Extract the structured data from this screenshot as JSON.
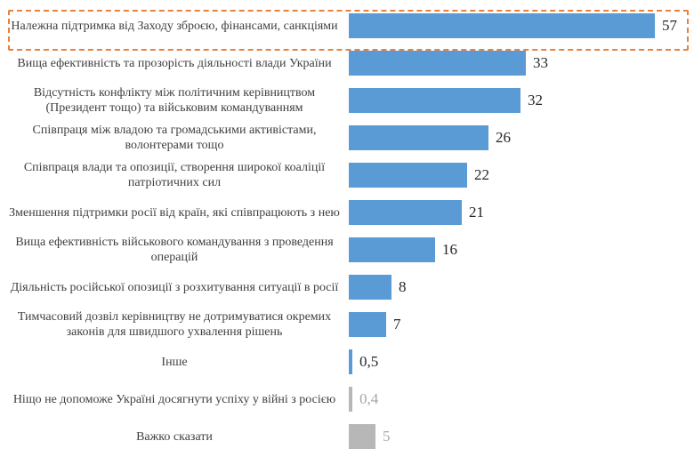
{
  "colors": {
    "bar_main": "#5B9BD5",
    "bar_other": "#B7B7B7",
    "value_main": "#262626",
    "value_other": "#A6A6A6",
    "highlight_border": "#E8813A"
  },
  "chart_data": {
    "type": "bar",
    "orientation": "horizontal",
    "categories": [
      "Належна підтримка від Заходу зброєю, фінансами, санкціями",
      "Вища ефективність та прозорість діяльності влади України",
      "Відсутність конфлікту між політичним керівництвом (Президент тощо) та військовим командуванням",
      "Співпраця між владою та громадськими активістами, волонтерами тощо",
      "Співпраця влади та опозиції, створення широкої коаліції патріотичних сил",
      "Зменшення підтримки росії від країн, які співпрацюють з нею",
      "Вища ефективність військового командування з проведення операцій",
      "Діяльність російської опозиції з розхитування ситуації в росії",
      "Тимчасовий дозвіл керівництву не дотримуватися окремих законів для швидшого ухвалення  рішень",
      "Інше",
      "Ніщо не допоможе Україні досягнути успіху у війні з росією",
      "Важко сказати"
    ],
    "values": [
      57,
      33,
      32,
      26,
      22,
      21,
      16,
      8,
      7,
      0.5,
      0.4,
      5
    ],
    "value_labels": [
      "57",
      "33",
      "32",
      "26",
      "22",
      "21",
      "16",
      "8",
      "7",
      "0,5",
      "0,4",
      "5"
    ],
    "bar_color_groups": [
      "main",
      "main",
      "main",
      "main",
      "main",
      "main",
      "main",
      "main",
      "main",
      "main",
      "other",
      "other"
    ],
    "highlighted_category_index": 0,
    "title": "",
    "xlabel": "",
    "ylabel": "",
    "xlim": [
      0,
      57
    ],
    "grid": false,
    "legend": "none"
  }
}
